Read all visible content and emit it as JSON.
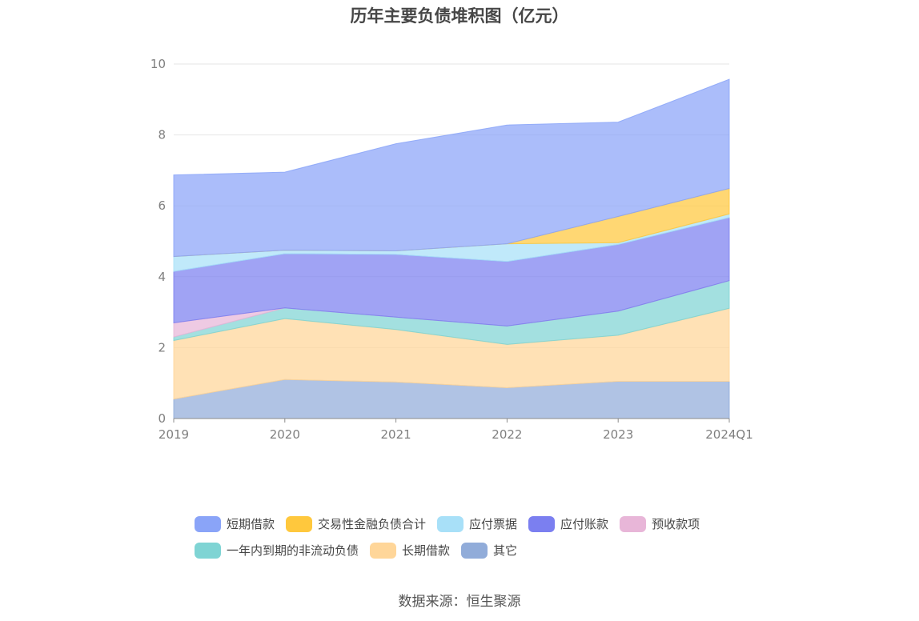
{
  "chart_data": {
    "type": "area",
    "stacked": true,
    "title": "历年主要负债堆积图（亿元）",
    "x": [
      "2019",
      "2020",
      "2021",
      "2022",
      "2023",
      "2024Q1"
    ],
    "ylim": [
      0,
      10
    ],
    "yticks": [
      0,
      2,
      4,
      6,
      8,
      10
    ],
    "grid": true,
    "legend_position": "bottom",
    "series": [
      {
        "name": "其它",
        "color": "#91ACD9",
        "values": [
          0.55,
          1.1,
          1.03,
          0.87,
          1.05,
          1.05
        ]
      },
      {
        "name": "长期借款",
        "color": "#FFD699",
        "values": [
          1.65,
          1.72,
          1.48,
          1.22,
          1.3,
          2.06
        ]
      },
      {
        "name": "一年内到期的非流动负债",
        "color": "#7FD4D4",
        "values": [
          0.1,
          0.3,
          0.35,
          0.52,
          0.68,
          0.78
        ]
      },
      {
        "name": "预收款项",
        "color": "#E8B6D8",
        "values": [
          0.4,
          0.0,
          0.0,
          0.0,
          0.0,
          0.0
        ]
      },
      {
        "name": "应付账款",
        "color": "#7B7FF0",
        "values": [
          1.45,
          1.53,
          1.77,
          1.82,
          1.88,
          1.78
        ]
      },
      {
        "name": "应付票据",
        "color": "#A8E0F8",
        "values": [
          0.42,
          0.1,
          0.1,
          0.5,
          0.05,
          0.1
        ]
      },
      {
        "name": "交易性金融负债合计",
        "color": "#FFC83D",
        "values": [
          0.0,
          0.0,
          0.0,
          0.0,
          0.74,
          0.72
        ]
      },
      {
        "name": "短期借款",
        "color": "#8AA4F8",
        "values": [
          2.3,
          2.2,
          3.02,
          3.35,
          2.66,
          3.08
        ]
      }
    ]
  },
  "legend": {
    "row1": [
      {
        "label": "短期借款",
        "color": "#8AA4F8"
      },
      {
        "label": "交易性金融负债合计",
        "color": "#FFC83D"
      },
      {
        "label": "应付票据",
        "color": "#A8E0F8"
      },
      {
        "label": "应付账款",
        "color": "#7B7FF0"
      },
      {
        "label": "预收款项",
        "color": "#E8B6D8"
      }
    ],
    "row2": [
      {
        "label": "一年内到期的非流动负债",
        "color": "#7FD4D4"
      },
      {
        "label": "长期借款",
        "color": "#FFD699"
      },
      {
        "label": "其它",
        "color": "#91ACD9"
      }
    ]
  },
  "source": "数据来源：恒生聚源"
}
